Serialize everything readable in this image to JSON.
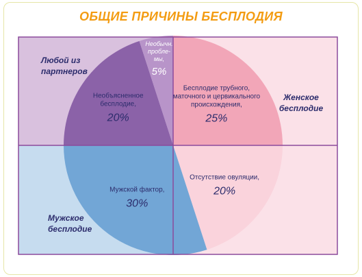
{
  "chart_data": {
    "type": "pie",
    "title": "ОБЩИЕ ПРИЧИНЫ БЕСПЛОДИЯ",
    "start_angle_deg": 0,
    "slices": [
      {
        "label_lines": [
          "Бесплодие трубного,",
          "маточного и цервикального",
          "происхождения,"
        ],
        "value": 25,
        "value_text": "25%",
        "color": "#f2a6b8",
        "label_style": "dark"
      },
      {
        "label_lines": [
          "Отсутствие овуляции,"
        ],
        "value": 20,
        "value_text": "20%",
        "color": "#fad3dc",
        "label_style": "dark"
      },
      {
        "label_lines": [
          "Мужской фактор,"
        ],
        "value": 30,
        "value_text": "30%",
        "color": "#72a6d6",
        "label_style": "dark"
      },
      {
        "label_lines": [
          "Необъясненное",
          "бесплодие,"
        ],
        "value": 20,
        "value_text": "20%",
        "color": "#8b62a8",
        "label_style": "dark"
      },
      {
        "label_lines": [
          "Необычн.",
          "пробле-",
          "мы,"
        ],
        "value": 5,
        "value_text": "5%",
        "color": "#b894c9",
        "label_style": "light"
      }
    ],
    "quadrants": {
      "top_left": {
        "label_lines": [
          "Любой из",
          "партнеров"
        ],
        "color": "#d9c1de"
      },
      "top_right": {
        "label_lines": [
          "Женское",
          "бесплодие"
        ],
        "color": "#fbe1e8"
      },
      "bottom_left": {
        "label_lines": [
          "Мужское",
          "бесплодие"
        ],
        "color": "#c6dcef"
      },
      "bottom_right": {
        "label_lines": [],
        "color": "#fbe1e8"
      }
    },
    "quadrant_border_color": "#8b4a9c"
  }
}
